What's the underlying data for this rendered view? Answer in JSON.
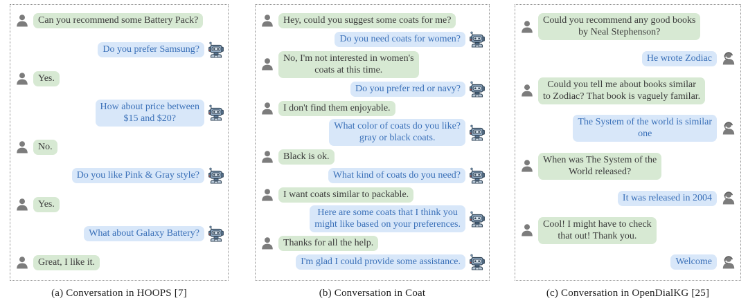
{
  "figure": {
    "colors": {
      "user_bubble": "#d7e9d3",
      "user_text": "#3b3b3b",
      "responder_bubble": "#d8e7f9",
      "responder_text": "#3a70b8",
      "person_icon_gray": "#7c7c7c",
      "panel_border": "#8f8f8f"
    },
    "icons": {
      "user": "person-silhouette",
      "robot": "robot-head-with-headphones",
      "agent": "person-with-headset"
    },
    "panels": [
      {
        "caption": "(a) Conversation in HOOPS [7]",
        "responder_icon": "robot",
        "messages": [
          {
            "sender": "user",
            "text": "Can you recommend some Battery Pack?"
          },
          {
            "sender": "responder",
            "text": "Do you prefer Samsung?"
          },
          {
            "sender": "user",
            "text": "Yes."
          },
          {
            "sender": "responder",
            "text": "How about price between\n$15 and $20?"
          },
          {
            "sender": "user",
            "text": "No."
          },
          {
            "sender": "responder",
            "text": "Do you like Pink & Gray style?"
          },
          {
            "sender": "user",
            "text": "Yes."
          },
          {
            "sender": "responder",
            "text": "What about Galaxy Battery?"
          },
          {
            "sender": "user",
            "text": "Great, I like it."
          }
        ]
      },
      {
        "caption": "(b) Conversation in Coat",
        "responder_icon": "robot",
        "messages": [
          {
            "sender": "user",
            "text": "Hey, could you suggest some coats for me?"
          },
          {
            "sender": "responder",
            "text": "Do you need coats for women?"
          },
          {
            "sender": "user",
            "text": "No, I'm not interested in women's\ncoats at this time."
          },
          {
            "sender": "responder",
            "text": "Do you prefer red or navy?"
          },
          {
            "sender": "user",
            "text": "I don't find them enjoyable."
          },
          {
            "sender": "responder",
            "text": "What color of coats do you like?\ngray or black coats."
          },
          {
            "sender": "user",
            "text": "Black is ok."
          },
          {
            "sender": "responder",
            "text": "What kind of coats do you need?"
          },
          {
            "sender": "user",
            "text": "I want coats similar to packable."
          },
          {
            "sender": "responder",
            "text": "Here are some coats that I think you\nmight like based on your preferences."
          },
          {
            "sender": "user",
            "text": "Thanks for all the help."
          },
          {
            "sender": "responder",
            "text": "I'm glad I could provide some assistance."
          }
        ]
      },
      {
        "caption": "(c) Conversation in OpenDialKG [25]",
        "responder_icon": "agent",
        "messages": [
          {
            "sender": "user",
            "text": "Could you recommend any good books\nby Neal Stephenson?"
          },
          {
            "sender": "responder",
            "text": "He wrote Zodiac"
          },
          {
            "sender": "user",
            "text": "Could you tell me about books similar\nto Zodiac? That book is vaguely familar."
          },
          {
            "sender": "responder",
            "text": "The System of the world is similar\none"
          },
          {
            "sender": "user",
            "text": "When was The System of the\nWorld released?"
          },
          {
            "sender": "responder",
            "text": "It was released in 2004"
          },
          {
            "sender": "user",
            "text": "Cool! I might have to check\nthat out! Thank you."
          },
          {
            "sender": "responder",
            "text": "Welcome"
          }
        ]
      }
    ]
  }
}
